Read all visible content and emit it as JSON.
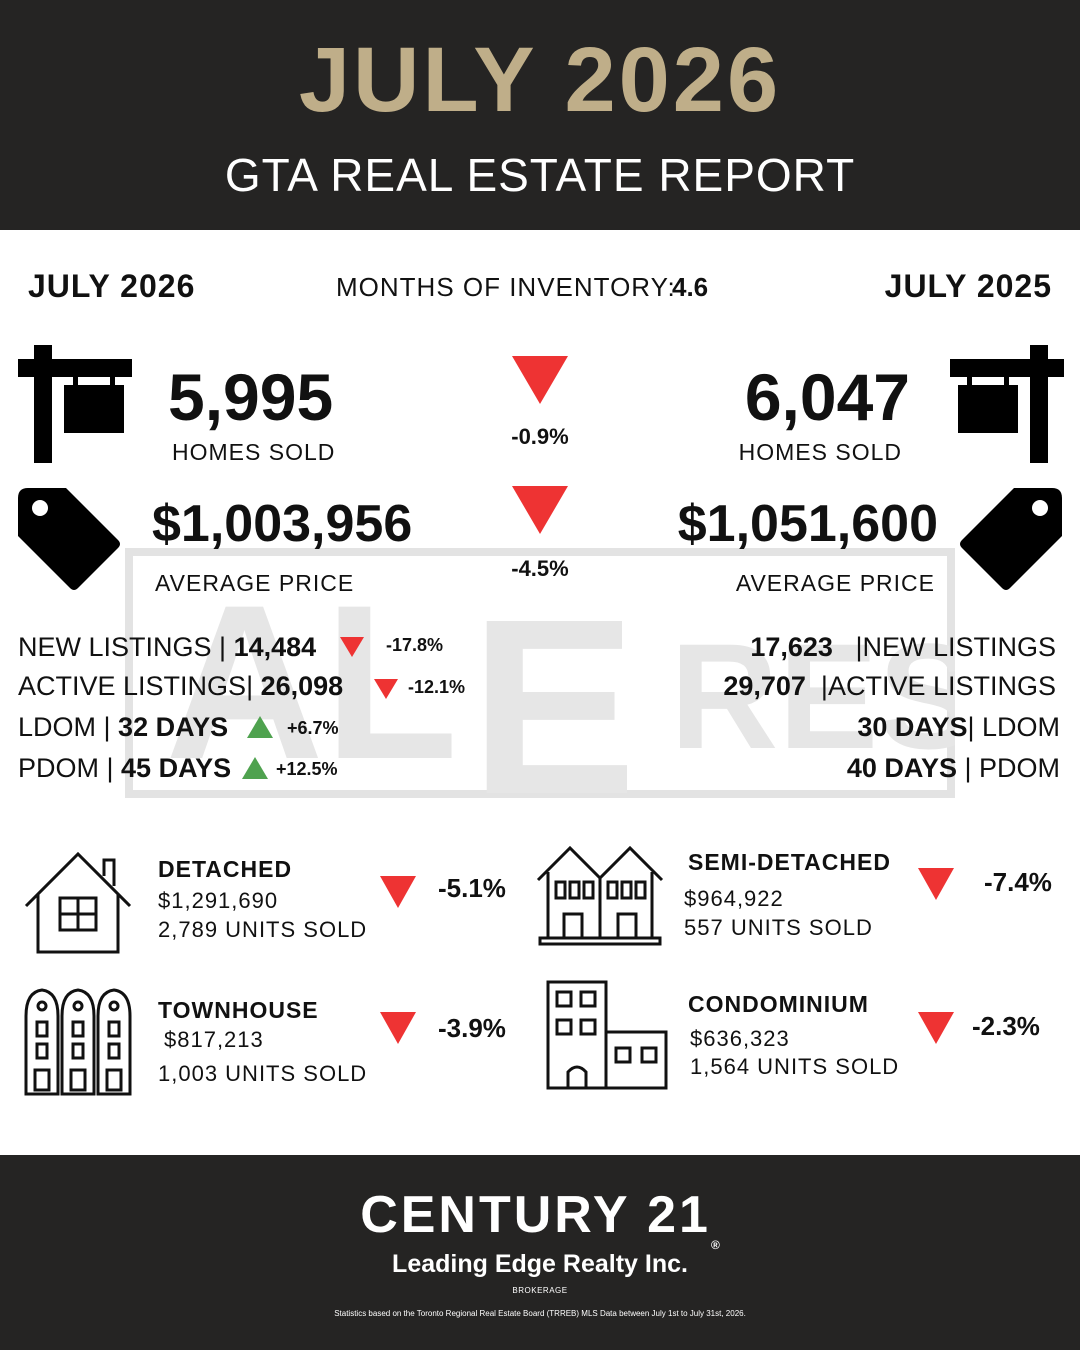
{
  "header": {
    "month": "JULY 2026",
    "title": "GTA REAL ESTATE REPORT"
  },
  "watermark": {
    "text_top": "AL",
    "text_mid": "E",
    "text_bottom": "RES"
  },
  "comparison": {
    "current_label": "JULY 2026",
    "previous_label": "JULY 2025",
    "inventory_label": "MONTHS OF INVENTORY:",
    "inventory_value": "4.6",
    "homes_sold": {
      "current": "5,995",
      "previous": "6,047",
      "label": "HOMES SOLD",
      "change": "-0.9%",
      "direction": "down"
    },
    "average_price": {
      "current": "$1,003,956",
      "previous": "$1,051,600",
      "label": "AVERAGE PRICE",
      "change": "-4.5%",
      "direction": "down"
    }
  },
  "metrics": [
    {
      "label": "NEW LISTINGS",
      "current": "14,484",
      "previous": "17,623",
      "change": "-17.8%",
      "direction": "down"
    },
    {
      "label": "ACTIVE LISTINGS",
      "current": "26,098",
      "previous": "29,707",
      "change": "-12.1%",
      "direction": "down"
    },
    {
      "label": "LDOM",
      "current": "32 DAYS",
      "previous": "30 DAYS",
      "change": "+6.7%",
      "direction": "up"
    },
    {
      "label": "PDOM",
      "current": "45 DAYS",
      "previous": "40 DAYS",
      "change": "+12.5%",
      "direction": "up"
    }
  ],
  "property_types": [
    {
      "name": "DETACHED",
      "price": "$1,291,690",
      "units": "2,789 UNITS SOLD",
      "change": "-5.1%",
      "icon": "house-icon"
    },
    {
      "name": "SEMI-DETACHED",
      "price": "$964,922",
      "units": "557 UNITS SOLD",
      "change": "-7.4%",
      "icon": "semi-detached-icon"
    },
    {
      "name": "TOWNHOUSE",
      "price": "$817,213",
      "units": "1,003 UNITS SOLD",
      "change": "-3.9%",
      "icon": "townhouse-icon"
    },
    {
      "name": "CONDOMINIUM",
      "price": "$636,323",
      "units": "1,564 UNITS SOLD",
      "change": "-2.3%",
      "icon": "condo-building-icon"
    }
  ],
  "footer": {
    "brand": "CENTURY 21",
    "registered": "®",
    "office": "Leading Edge Realty Inc.",
    "brokerage": "BROKERAGE",
    "disclaimer": "Statistics based on the Toronto Regional Real Estate Board (TRREB) MLS Data between July 1st to July 31st, 2026."
  },
  "colors": {
    "header_bg": "#252423",
    "gold": "#bfae89",
    "down": "#ee3333",
    "up": "#4fa24f"
  }
}
